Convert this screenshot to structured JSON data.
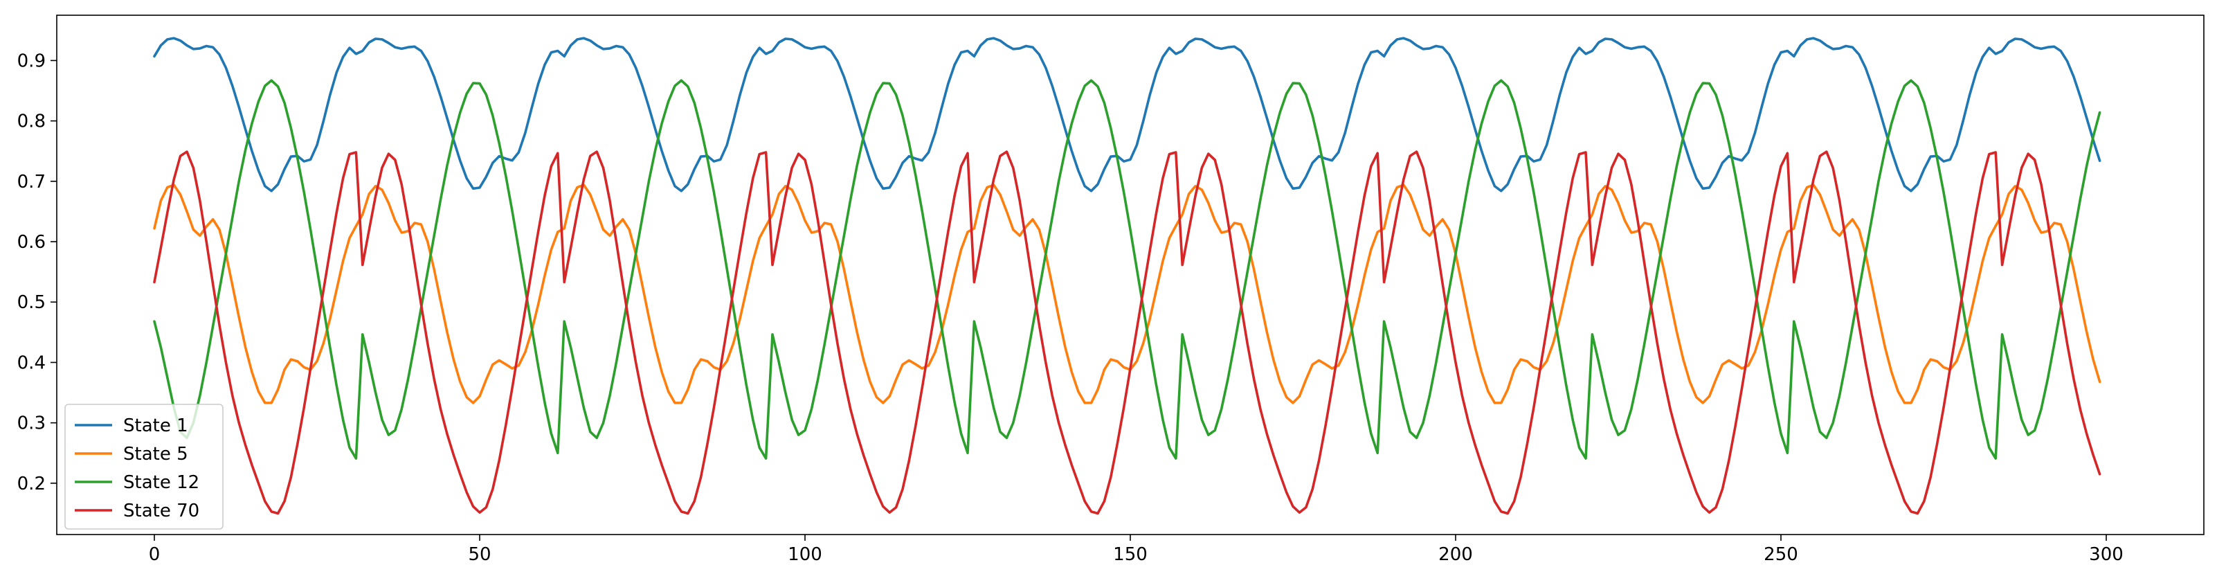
{
  "chart_data": {
    "type": "line",
    "title": "",
    "xlabel": "",
    "ylabel": "",
    "xlim": [
      -15,
      315
    ],
    "ylim": [
      0.115,
      0.975
    ],
    "xticks": [
      0,
      50,
      100,
      150,
      200,
      250,
      300
    ],
    "yticks": [
      0.2,
      0.3,
      0.4,
      0.5,
      0.6,
      0.7,
      0.8,
      0.9
    ],
    "grid": false,
    "legend_position": "lower-left",
    "period": 31.5,
    "x_range": [
      0,
      299
    ],
    "series": [
      {
        "name": "State 1",
        "color": "#1f77b4",
        "period_points": [
          [
            0,
            0.907
          ],
          [
            1,
            0.925
          ],
          [
            2,
            0.935
          ],
          [
            3,
            0.937
          ],
          [
            4,
            0.933
          ],
          [
            5,
            0.925
          ],
          [
            6,
            0.919
          ],
          [
            7,
            0.92
          ],
          [
            8,
            0.924
          ],
          [
            9,
            0.922
          ],
          [
            10,
            0.91
          ],
          [
            11,
            0.888
          ],
          [
            12,
            0.858
          ],
          [
            13,
            0.823
          ],
          [
            14,
            0.786
          ],
          [
            15,
            0.75
          ],
          [
            16,
            0.718
          ],
          [
            17,
            0.692
          ],
          [
            18,
            0.684
          ],
          [
            19,
            0.695
          ],
          [
            20,
            0.72
          ],
          [
            21,
            0.741
          ],
          [
            22,
            0.742
          ],
          [
            23,
            0.733
          ],
          [
            24,
            0.736
          ],
          [
            25,
            0.76
          ],
          [
            26,
            0.8
          ],
          [
            27,
            0.843
          ],
          [
            28,
            0.88
          ],
          [
            29,
            0.906
          ],
          [
            30,
            0.921
          ],
          [
            31,
            0.911
          ]
        ]
      },
      {
        "name": "State 5",
        "color": "#ff7f0e",
        "period_points": [
          [
            0,
            0.622
          ],
          [
            1,
            0.668
          ],
          [
            2,
            0.69
          ],
          [
            3,
            0.694
          ],
          [
            4,
            0.678
          ],
          [
            5,
            0.65
          ],
          [
            6,
            0.62
          ],
          [
            7,
            0.61
          ],
          [
            8,
            0.625
          ],
          [
            9,
            0.637
          ],
          [
            10,
            0.62
          ],
          [
            11,
            0.58
          ],
          [
            12,
            0.528
          ],
          [
            13,
            0.475
          ],
          [
            14,
            0.425
          ],
          [
            15,
            0.384
          ],
          [
            16,
            0.352
          ],
          [
            17,
            0.333
          ],
          [
            18,
            0.333
          ],
          [
            19,
            0.355
          ],
          [
            20,
            0.388
          ],
          [
            21,
            0.405
          ],
          [
            22,
            0.402
          ],
          [
            23,
            0.392
          ],
          [
            24,
            0.388
          ],
          [
            25,
            0.402
          ],
          [
            26,
            0.432
          ],
          [
            27,
            0.472
          ],
          [
            28,
            0.52
          ],
          [
            29,
            0.568
          ],
          [
            30,
            0.606
          ],
          [
            31,
            0.626
          ]
        ]
      },
      {
        "name": "State 12",
        "color": "#2ca02c",
        "period_points": [
          [
            0,
            0.468
          ],
          [
            1,
            0.425
          ],
          [
            2,
            0.375
          ],
          [
            3,
            0.325
          ],
          [
            4,
            0.285
          ],
          [
            5,
            0.275
          ],
          [
            6,
            0.3
          ],
          [
            7,
            0.345
          ],
          [
            8,
            0.4
          ],
          [
            9,
            0.46
          ],
          [
            10,
            0.52
          ],
          [
            11,
            0.58
          ],
          [
            12,
            0.64
          ],
          [
            13,
            0.7
          ],
          [
            14,
            0.752
          ],
          [
            15,
            0.796
          ],
          [
            16,
            0.832
          ],
          [
            17,
            0.858
          ],
          [
            18,
            0.867
          ],
          [
            19,
            0.857
          ],
          [
            20,
            0.83
          ],
          [
            21,
            0.788
          ],
          [
            22,
            0.738
          ],
          [
            23,
            0.682
          ],
          [
            24,
            0.62
          ],
          [
            25,
            0.555
          ],
          [
            26,
            0.49
          ],
          [
            27,
            0.425
          ],
          [
            28,
            0.362
          ],
          [
            29,
            0.305
          ],
          [
            30,
            0.259
          ],
          [
            31,
            0.241
          ]
        ]
      },
      {
        "name": "State 70",
        "color": "#d62728",
        "period_points": [
          [
            0,
            0.533
          ],
          [
            1,
            0.59
          ],
          [
            2,
            0.648
          ],
          [
            3,
            0.703
          ],
          [
            4,
            0.742
          ],
          [
            5,
            0.749
          ],
          [
            6,
            0.722
          ],
          [
            7,
            0.668
          ],
          [
            8,
            0.6
          ],
          [
            9,
            0.53
          ],
          [
            10,
            0.462
          ],
          [
            11,
            0.4
          ],
          [
            12,
            0.345
          ],
          [
            13,
            0.3
          ],
          [
            14,
            0.263
          ],
          [
            15,
            0.23
          ],
          [
            16,
            0.2
          ],
          [
            17,
            0.17
          ],
          [
            18,
            0.153
          ],
          [
            19,
            0.15
          ],
          [
            20,
            0.17
          ],
          [
            21,
            0.21
          ],
          [
            22,
            0.265
          ],
          [
            23,
            0.325
          ],
          [
            24,
            0.39
          ],
          [
            25,
            0.455
          ],
          [
            26,
            0.52
          ],
          [
            27,
            0.585
          ],
          [
            28,
            0.648
          ],
          [
            29,
            0.705
          ],
          [
            30,
            0.745
          ],
          [
            31,
            0.748
          ]
        ]
      }
    ]
  }
}
